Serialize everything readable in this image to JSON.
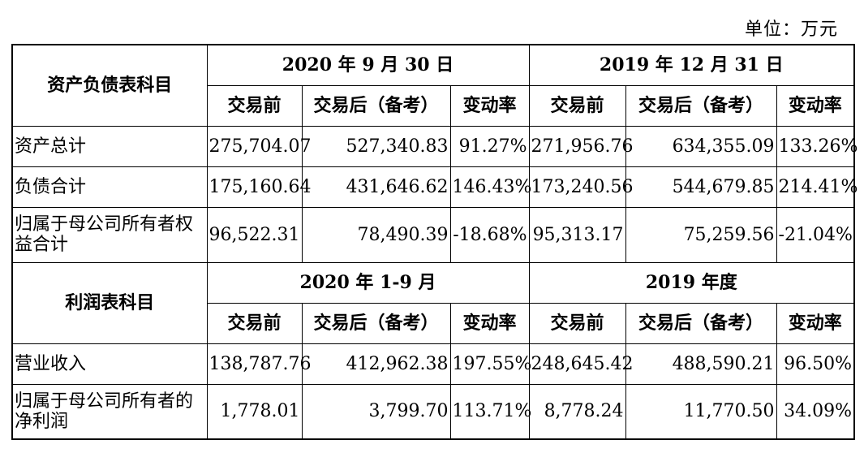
{
  "unit_label": "单位：万元",
  "balance": {
    "section_label": "资产负债表科目",
    "periods": [
      "2020 年 9 月 30 日",
      "2019 年 12 月 31 日"
    ],
    "subheaders": [
      "交易前",
      "交易后（备考）",
      "变动率",
      "交易前",
      "交易后（备考）",
      "变动率"
    ],
    "rows": [
      {
        "label": "资产总计",
        "values": [
          "275,704.07",
          "527,340.83",
          "91.27%",
          "271,956.76",
          "634,355.09",
          "133.26%"
        ]
      },
      {
        "label": "负债合计",
        "values": [
          "175,160.64",
          "431,646.62",
          "146.43%",
          "173,240.56",
          "544,679.85",
          "214.41%"
        ]
      },
      {
        "label": "归属于母公司所有者权益合计",
        "values": [
          "96,522.31",
          "78,490.39",
          "-18.68%",
          "95,313.17",
          "75,259.56",
          "-21.04%"
        ]
      }
    ]
  },
  "income": {
    "section_label": "利润表科目",
    "periods": [
      "2020 年 1-9 月",
      "2019 年度"
    ],
    "subheaders": [
      "交易前",
      "交易后（备考）",
      "变动率",
      "交易前",
      "交易后（备考）",
      "变动率"
    ],
    "rows": [
      {
        "label": "营业收入",
        "values": [
          "138,787.76",
          "412,962.38",
          "197.55%",
          "248,645.42",
          "488,590.21",
          "96.50%"
        ]
      },
      {
        "label": "归属于母公司所有者的净利润",
        "values": [
          "1,778.01",
          "3,799.70",
          "113.71%",
          "8,778.24",
          "11,770.50",
          "34.09%"
        ]
      }
    ]
  }
}
